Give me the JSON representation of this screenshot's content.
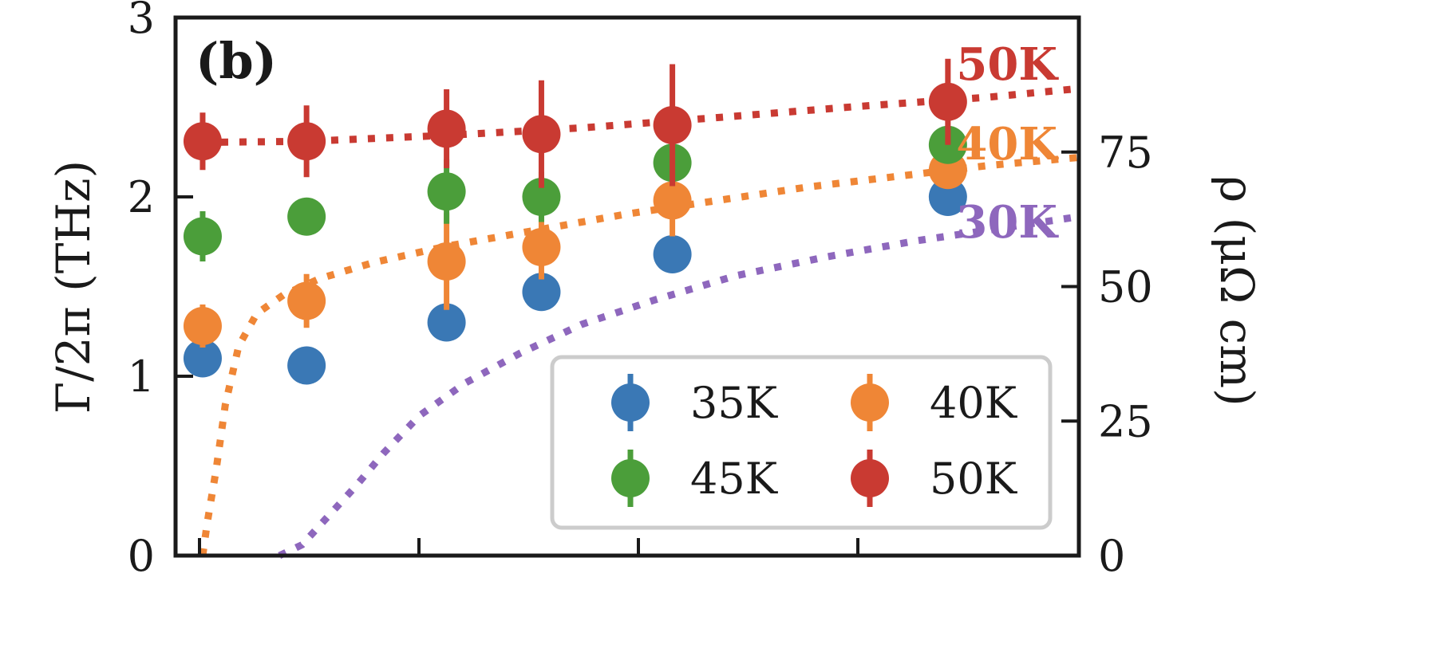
{
  "chart_data": {
    "type": "scatter",
    "panel_label": "(b)",
    "ylabel_left": "Γ/2π (THz)",
    "ylabel_right": "ρ (μΩ cm)",
    "ylim_left": [
      0,
      3
    ],
    "ylim_right": [
      0,
      100
    ],
    "xlim": [
      0,
      1
    ],
    "yticks_left": [
      0,
      1,
      2,
      3
    ],
    "yticks_right": [
      0,
      25,
      50,
      75
    ],
    "xticks_count": 4,
    "grid": false,
    "legend_position": "lower-right",
    "legend_columns": 2,
    "series": [
      {
        "name": "35K",
        "color": "#3a78b5",
        "points": [
          {
            "x": 0.03,
            "y": 1.1,
            "err": 0
          },
          {
            "x": 0.145,
            "y": 1.06,
            "err": 0
          },
          {
            "x": 0.3,
            "y": 1.3,
            "err": 0
          },
          {
            "x": 0.405,
            "y": 1.47,
            "err": 0
          },
          {
            "x": 0.55,
            "y": 1.68,
            "err": 0
          },
          {
            "x": 0.855,
            "y": 2.0,
            "err": 0
          }
        ]
      },
      {
        "name": "40K",
        "color": "#ef8636",
        "points": [
          {
            "x": 0.03,
            "y": 1.28,
            "err": 0.12
          },
          {
            "x": 0.145,
            "y": 1.42,
            "err": 0.15
          },
          {
            "x": 0.3,
            "y": 1.64,
            "err": 0.27
          },
          {
            "x": 0.405,
            "y": 1.72,
            "err": 0.18
          },
          {
            "x": 0.55,
            "y": 1.98,
            "err": 0.2
          },
          {
            "x": 0.855,
            "y": 2.15,
            "err": 0.05
          }
        ]
      },
      {
        "name": "45K",
        "color": "#4b9e3a",
        "points": [
          {
            "x": 0.03,
            "y": 1.78,
            "err": 0.14
          },
          {
            "x": 0.145,
            "y": 1.89,
            "err": 0.05
          },
          {
            "x": 0.3,
            "y": 2.03,
            "err": 0.18
          },
          {
            "x": 0.405,
            "y": 2.0,
            "err": 0.14
          },
          {
            "x": 0.55,
            "y": 2.19,
            "err": 0.03
          },
          {
            "x": 0.855,
            "y": 2.29,
            "err": 0.03
          }
        ]
      },
      {
        "name": "50K",
        "color": "#c93a32",
        "points": [
          {
            "x": 0.03,
            "y": 2.31,
            "err": 0.16
          },
          {
            "x": 0.145,
            "y": 2.31,
            "err": 0.2
          },
          {
            "x": 0.3,
            "y": 2.38,
            "err": 0.22
          },
          {
            "x": 0.405,
            "y": 2.35,
            "err": 0.3
          },
          {
            "x": 0.55,
            "y": 2.4,
            "err": 0.34
          },
          {
            "x": 0.855,
            "y": 2.53,
            "err": 0.24
          }
        ]
      }
    ],
    "resistivity_curves": [
      {
        "label": "50K",
        "color": "#c93a32",
        "points": [
          [
            0.03,
            76.8
          ],
          [
            0.145,
            77.0
          ],
          [
            0.3,
            78.1
          ],
          [
            0.45,
            79.5
          ],
          [
            0.6,
            81.4
          ],
          [
            0.75,
            83.4
          ],
          [
            0.9,
            85.2
          ],
          [
            1.0,
            86.8
          ]
        ]
      },
      {
        "label": "40K",
        "color": "#ef8636",
        "points": [
          [
            0.03,
            0
          ],
          [
            0.035,
            6
          ],
          [
            0.045,
            16
          ],
          [
            0.055,
            28
          ],
          [
            0.07,
            39
          ],
          [
            0.09,
            45
          ],
          [
            0.12,
            48.5
          ],
          [
            0.16,
            51.5
          ],
          [
            0.22,
            54.5
          ],
          [
            0.3,
            57.5
          ],
          [
            0.4,
            60.5
          ],
          [
            0.5,
            63.5
          ],
          [
            0.6,
            66
          ],
          [
            0.7,
            68.5
          ],
          [
            0.8,
            70.5
          ],
          [
            0.9,
            72.5
          ],
          [
            1.0,
            74
          ]
        ]
      },
      {
        "label": "30K",
        "color": "#8e67bd",
        "points": [
          [
            0.115,
            0
          ],
          [
            0.14,
            2
          ],
          [
            0.17,
            7.5
          ],
          [
            0.2,
            13
          ],
          [
            0.23,
            19
          ],
          [
            0.27,
            26
          ],
          [
            0.32,
            32
          ],
          [
            0.38,
            37.5
          ],
          [
            0.45,
            43
          ],
          [
            0.53,
            47.5
          ],
          [
            0.62,
            52
          ],
          [
            0.72,
            55.5
          ],
          [
            0.82,
            58.5
          ],
          [
            0.92,
            61
          ],
          [
            1.0,
            63
          ]
        ]
      }
    ]
  }
}
